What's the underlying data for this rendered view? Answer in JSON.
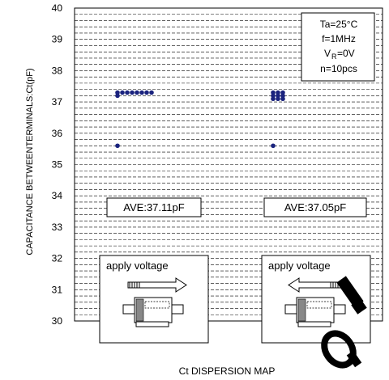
{
  "chart_data": {
    "type": "scatter",
    "title": "Ct DISPERSION MAP",
    "ylabel": "CAPACITANCE BETWEENTERMINALS:Ct(pF)",
    "ylim": [
      30,
      40
    ],
    "yticks": [
      "30",
      "31",
      "32",
      "33",
      "34",
      "35",
      "36",
      "37",
      "38",
      "39",
      "40"
    ],
    "grid": "horizontal dashed",
    "groups": [
      {
        "label": "AVE:37.11pF",
        "points": [
          37.3,
          37.3,
          37.3,
          37.3,
          37.3,
          37.3,
          37.3,
          37.3,
          37.2,
          35.6
        ]
      },
      {
        "label": "AVE:37.05pF",
        "points": [
          37.3,
          37.3,
          37.3,
          37.2,
          37.2,
          37.2,
          37.1,
          37.1,
          37.1,
          35.6
        ]
      }
    ],
    "conditions": [
      "Ta=25°C",
      "f=1MHz",
      "V",
      "R",
      "=0V",
      "n=10pcs"
    ],
    "insets": [
      {
        "label": "apply voltage",
        "arrow": "right"
      },
      {
        "label": "apply voltage",
        "arrow": "left"
      }
    ],
    "colors": {
      "points": "#1a237e",
      "grid": "#000000",
      "watermark": "#000000"
    }
  }
}
